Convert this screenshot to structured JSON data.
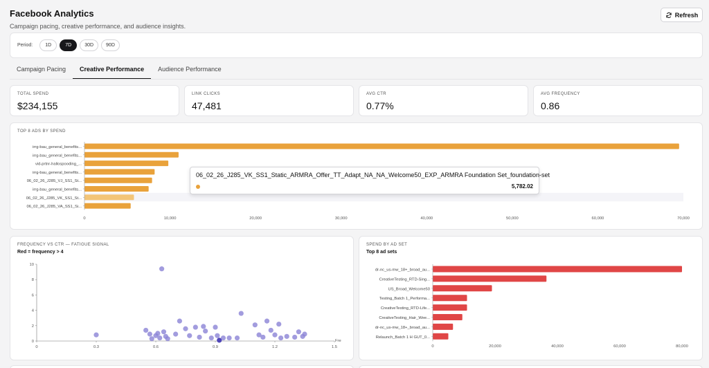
{
  "app": {
    "title": "Facebook Analytics",
    "subtitle": "Campaign pacing, creative performance, and audience insights.",
    "refresh_label": "Refresh"
  },
  "period": {
    "label": "Period:",
    "options": [
      "1D",
      "7D",
      "30D",
      "90D"
    ],
    "selected": "7D"
  },
  "tabs": [
    {
      "label": "Campaign Pacing",
      "active": false
    },
    {
      "label": "Creative Performance",
      "active": true
    },
    {
      "label": "Audience Performance",
      "active": false
    }
  ],
  "kpis": [
    {
      "label": "TOTAL SPEND",
      "value": "$234,155"
    },
    {
      "label": "LINK CLICKS",
      "value": "47,481"
    },
    {
      "label": "AVG CTR",
      "value": "0.77%"
    },
    {
      "label": "AVG FREQUENCY",
      "value": "0.86"
    }
  ],
  "top_ads": {
    "title": "TOP 8 ADS BY SPEND",
    "tooltip": {
      "title": "06_02_26_J285_VK_SS1_Static_ARMRA_Offer_TT_Adapt_NA_NA_Welcome50_EXP_ARMRA Foundation Set_foundation-set",
      "value": "5,782.02"
    }
  },
  "fatigue": {
    "title": "FREQUENCY VS CTR — FATIGUE SIGNAL",
    "subtitle": "Red = frequency > 4"
  },
  "adsets": {
    "title": "SPEND BY AD SET",
    "subtitle": "Top 8 ad sets"
  },
  "colors": {
    "orange": "#e9a23b",
    "orange_light": "#f3c577",
    "red": "#e04646",
    "purple": "#8b83d6",
    "purple_dark": "#5046b8"
  },
  "chart_data": [
    {
      "type": "bar",
      "orientation": "horizontal",
      "categories": [
        "irrg-bau_general_benefits...",
        "irrg-bau_general_benefits...",
        "vid-prtnr-hallospooding_...",
        "irrg-bau_general_benefits...",
        "06_02_26_J285_VJ_SS1_St...",
        "irrg-bau_general_benefits...",
        "06_02_26_J285_VK_SS1_St...",
        "06_02_26_J285_VA_SS1_Si..."
      ],
      "values": [
        69500,
        11000,
        9800,
        8200,
        7900,
        7500,
        5782.02,
        5400
      ],
      "highlighted_index": 6,
      "xlim": [
        0,
        70000
      ],
      "xticks": [
        "0",
        "10,000",
        "20,000",
        "30,000",
        "40,000",
        "50,000",
        "60,000",
        "70,000"
      ]
    },
    {
      "type": "scatter",
      "xlabel": "Fre",
      "xlim": [
        0,
        1.5
      ],
      "ylim": [
        0,
        10
      ],
      "xticks": [
        "0",
        "0.3",
        "0.6",
        "0.9",
        "1.2",
        "1.5"
      ],
      "yticks": [
        "0",
        "2",
        "4",
        "6",
        "8",
        "10"
      ],
      "points": [
        [
          0.63,
          9.4
        ],
        [
          0.3,
          0.8
        ],
        [
          0.55,
          1.4
        ],
        [
          0.57,
          0.9
        ],
        [
          0.58,
          0.3
        ],
        [
          0.6,
          0.7
        ],
        [
          0.61,
          1.0
        ],
        [
          0.62,
          0.4
        ],
        [
          0.64,
          1.2
        ],
        [
          0.65,
          0.6
        ],
        [
          0.66,
          0.3
        ],
        [
          0.7,
          0.9
        ],
        [
          0.72,
          2.6
        ],
        [
          0.75,
          1.6
        ],
        [
          0.77,
          0.7
        ],
        [
          0.8,
          1.8
        ],
        [
          0.82,
          0.5
        ],
        [
          0.84,
          1.9
        ],
        [
          0.85,
          1.3
        ],
        [
          0.88,
          0.4
        ],
        [
          0.9,
          1.8
        ],
        [
          0.91,
          0.7
        ],
        [
          0.94,
          0.4
        ],
        [
          0.97,
          0.4
        ],
        [
          1.01,
          0.4
        ],
        [
          1.03,
          3.6
        ],
        [
          1.1,
          2.1
        ],
        [
          1.12,
          0.8
        ],
        [
          1.14,
          0.5
        ],
        [
          1.16,
          2.6
        ],
        [
          1.18,
          1.4
        ],
        [
          1.2,
          0.8
        ],
        [
          1.22,
          2.2
        ],
        [
          1.23,
          0.4
        ],
        [
          1.26,
          0.6
        ],
        [
          1.3,
          0.5
        ],
        [
          1.32,
          1.2
        ],
        [
          1.34,
          0.6
        ],
        [
          1.35,
          0.9
        ]
      ],
      "dark_points": [
        [
          0.92,
          0.1
        ]
      ]
    },
    {
      "type": "bar",
      "orientation": "horizontal",
      "categories": [
        "dr-nc_us-mw_18+_broad_au...",
        "CreativeTesting_RTD-Sing...",
        "US_Broad_Welcome50",
        "Testing_Batch 1_Performa...",
        "CreativeTesting_RTD-Life...",
        "CreativeTesting_Hair_Wee...",
        "dr-nc_us-mw_18+_broad_au...",
        "Relaunch_Batch 1 H GUT_0..."
      ],
      "values": [
        80000,
        36500,
        19000,
        11000,
        11000,
        9500,
        6500,
        5000
      ],
      "xlim": [
        0,
        80000
      ],
      "xticks": [
        "0",
        "20,000",
        "40,000",
        "60,000",
        "80,000"
      ]
    }
  ]
}
